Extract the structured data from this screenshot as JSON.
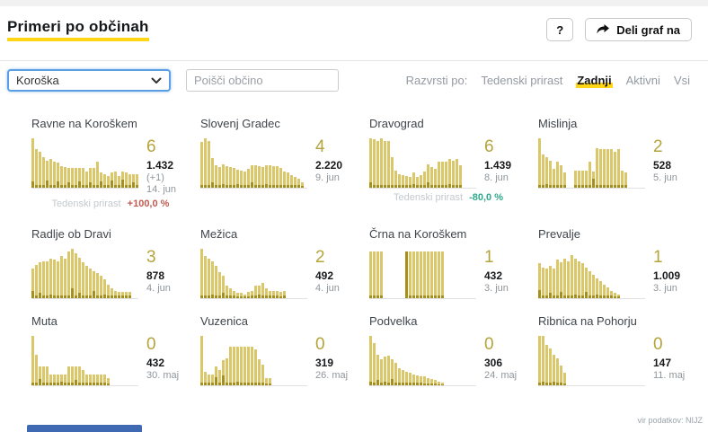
{
  "header": {
    "title": "Primeri po občinah",
    "help_label": "?",
    "share_label": "Deli graf na"
  },
  "filters": {
    "region_value": "Koroška",
    "search_placeholder": "Poišči občino",
    "sort_label": "Razvrsti po:",
    "sort_options": [
      {
        "label": "Tedenski prirast",
        "active": false
      },
      {
        "label": "Zadnji",
        "active": true
      },
      {
        "label": "Aktivni",
        "active": false
      },
      {
        "label": "Vsi",
        "active": false
      }
    ]
  },
  "colors": {
    "accent_yellow": "#ffd615",
    "bar": "#d9c76a",
    "bar_dark": "#a5901c",
    "big_number": "#b5a33b",
    "red": "#bf5b51",
    "green": "#2fa78c",
    "footer_bar_blue": "#3f69b3"
  },
  "cards": [
    {
      "name": "Ravne na Koroškem",
      "last": "6",
      "total": "1.432",
      "delta": "(+1)",
      "date": "14. jun",
      "footer_label": "Tedenski prirast",
      "footer_value": "+100,0 %",
      "footer_color": "red",
      "h": [
        1,
        0.78,
        0.72,
        0.62,
        0.55,
        0.58,
        0.52,
        0.5,
        0.44,
        0.42,
        0.4,
        0.4,
        0.4,
        0.4,
        0.4,
        0.33,
        0.4,
        0.4,
        0.52,
        0.3,
        0.28,
        0.24,
        0.3,
        0.33,
        0.24,
        0.33,
        0.3,
        0.28,
        0.28,
        0.28
      ],
      "d": [
        0.12,
        0.05,
        0.05,
        0.05,
        0.14,
        0.05,
        0.05,
        0.12,
        0.05,
        0.05,
        0.1,
        0.05,
        0.05,
        0.12,
        0.05,
        0.05,
        0.1,
        0.05,
        0.05,
        0.12,
        0.05,
        0.05,
        0.14,
        0.05,
        0.05,
        0.16,
        0.05,
        0.05,
        0.1,
        0.05
      ]
    },
    {
      "name": "Slovenj Gradec",
      "last": "4",
      "total": "2.220",
      "delta": "",
      "date": "9. jun",
      "footer_label": "",
      "footer_value": "",
      "footer_color": "",
      "h": [
        0.92,
        1,
        0.95,
        0.6,
        0.45,
        0.42,
        0.47,
        0.44,
        0.42,
        0.4,
        0.36,
        0.34,
        0.32,
        0.38,
        0.46,
        0.46,
        0.44,
        0.42,
        0.46,
        0.46,
        0.44,
        0.44,
        0.4,
        0.32,
        0.3,
        0.26,
        0.22,
        0.18,
        0.1
      ],
      "d": [
        0.05,
        0.05,
        0.05,
        0.1,
        0.05,
        0.05,
        0.08,
        0.05,
        0.05,
        0.05,
        0.08,
        0.05,
        0.05,
        0.05,
        0.1,
        0.05,
        0.05,
        0.05,
        0.08,
        0.05,
        0.05,
        0.05,
        0.05,
        0.05,
        0.05,
        0.05,
        0.05,
        0.05,
        0.04
      ]
    },
    {
      "name": "Dravograd",
      "last": "6",
      "total": "1.439",
      "delta": "",
      "date": "8. jun",
      "footer_label": "Tedenski prirast",
      "footer_value": "-80,0 %",
      "footer_color": "green",
      "h": [
        1,
        0.98,
        0.95,
        1,
        0.95,
        0.95,
        0.62,
        0.35,
        0.28,
        0.25,
        0.24,
        0.22,
        0.3,
        0.22,
        0.25,
        0.32,
        0.48,
        0.42,
        0.38,
        0.52,
        0.52,
        0.52,
        0.58,
        0.55,
        0.58,
        0.45
      ],
      "d": [
        0.1,
        0.05,
        0.05,
        0.05,
        0.05,
        0.05,
        0.05,
        0.05,
        0.05,
        0.05,
        0.05,
        0.05,
        0.08,
        0.05,
        0.05,
        0.05,
        0.1,
        0.05,
        0.05,
        0.05,
        0.05,
        0.05,
        0.08,
        0.05,
        0.05,
        0.05
      ]
    },
    {
      "name": "Mislinja",
      "last": "2",
      "total": "528",
      "delta": "",
      "date": "5. jun",
      "footer_label": "",
      "footer_value": "",
      "footer_color": "",
      "h": [
        1,
        0.68,
        0.62,
        0.55,
        0.38,
        0.52,
        0.45,
        0.3,
        0,
        0,
        0.35,
        0.35,
        0.35,
        0.35,
        0.52,
        0.32,
        0.8,
        0.78,
        0.78,
        0.78,
        0.78,
        0.72,
        0.78,
        0.35,
        0.3
      ],
      "d": [
        0.05,
        0.05,
        0.08,
        0.05,
        0.05,
        0.05,
        0.05,
        0.05,
        0,
        0,
        0.05,
        0.05,
        0.05,
        0.05,
        0.05,
        0.18,
        0.05,
        0.05,
        0.05,
        0.05,
        0.05,
        0.05,
        0.05,
        0.05,
        0.05
      ]
    },
    {
      "name": "Radlje ob Dravi",
      "last": "3",
      "total": "878",
      "delta": "",
      "date": "4. jun",
      "footer_label": "",
      "footer_value": "",
      "footer_color": "",
      "h": [
        0.6,
        0.68,
        0.72,
        0.75,
        0.75,
        0.8,
        0.78,
        0.75,
        0.85,
        0.8,
        0.95,
        1,
        0.9,
        0.82,
        0.72,
        0.65,
        0.6,
        0.55,
        0.5,
        0.45,
        0.38,
        0.28,
        0.2,
        0.15,
        0.13,
        0.13,
        0.13,
        0.13
      ],
      "d": [
        0.14,
        0.05,
        0.1,
        0.05,
        0.05,
        0.08,
        0.05,
        0.05,
        0.05,
        0.05,
        0.05,
        0.2,
        0.05,
        0.1,
        0.05,
        0.05,
        0.05,
        0.14,
        0.05,
        0.05,
        0.08,
        0.05,
        0.05,
        0.05,
        0.05,
        0.05,
        0.05,
        0.05
      ]
    },
    {
      "name": "Mežica",
      "last": "2",
      "total": "492",
      "delta": "",
      "date": "4. jun",
      "footer_label": "",
      "footer_value": "",
      "footer_color": "",
      "h": [
        1,
        0.85,
        0.8,
        0.75,
        0.65,
        0.52,
        0.45,
        0.25,
        0.2,
        0.15,
        0.1,
        0.1,
        0.08,
        0.12,
        0.15,
        0.25,
        0.25,
        0.3,
        0.2,
        0.15,
        0.15,
        0.15,
        0.12,
        0.15
      ],
      "d": [
        0.05,
        0.05,
        0.05,
        0.08,
        0.05,
        0.05,
        0.1,
        0.05,
        0.05,
        0.05,
        0.03,
        0.03,
        0.03,
        0.04,
        0.05,
        0.05,
        0.08,
        0.05,
        0.05,
        0.05,
        0.05,
        0.06,
        0.04,
        0.05
      ]
    },
    {
      "name": "Črna na Koroškem",
      "last": "1",
      "total": "432",
      "delta": "",
      "date": "3. jun",
      "footer_label": "",
      "footer_value": "",
      "footer_color": "",
      "h": [
        0.95,
        0.95,
        0.95,
        0.95,
        0,
        0,
        0,
        0,
        0,
        0,
        0.95,
        0.95,
        0.95,
        0.95,
        0.95,
        0.95,
        0.95,
        0.95,
        0.95,
        0.95,
        0.95
      ],
      "d": [
        0.05,
        0.05,
        0.05,
        0.05,
        0,
        0,
        0,
        0,
        0,
        0,
        0.95,
        0.05,
        0.05,
        0.05,
        0.05,
        0.05,
        0.05,
        0.05,
        0.05,
        0.05,
        0.05
      ]
    },
    {
      "name": "Prevalje",
      "last": "1",
      "total": "1.009",
      "delta": "",
      "date": "3. jun",
      "footer_label": "",
      "footer_value": "",
      "footer_color": "",
      "h": [
        0.7,
        0.62,
        0.6,
        0.65,
        0.6,
        0.78,
        0.72,
        0.8,
        0.75,
        0.88,
        0.8,
        0.75,
        0.7,
        0.62,
        0.55,
        0.48,
        0.4,
        0.35,
        0.28,
        0.22,
        0.15,
        0.1,
        0.08
      ],
      "d": [
        0.16,
        0.05,
        0.05,
        0.1,
        0.05,
        0.05,
        0.12,
        0.05,
        0.05,
        0.05,
        0.08,
        0.05,
        0.05,
        0.12,
        0.05,
        0.05,
        0.08,
        0.05,
        0.05,
        0.05,
        0.05,
        0.04,
        0.03
      ]
    },
    {
      "name": "Muta",
      "last": "0",
      "total": "432",
      "delta": "",
      "date": "30. maj",
      "footer_label": "",
      "footer_value": "",
      "footer_color": "",
      "h": [
        1,
        0.62,
        0.38,
        0.38,
        0.38,
        0.22,
        0.22,
        0.22,
        0.22,
        0.22,
        0.38,
        0.38,
        0.38,
        0.38,
        0.3,
        0.22,
        0.22,
        0.22,
        0.22,
        0.22,
        0.22,
        0.15
      ],
      "d": [
        0.05,
        0.05,
        0.12,
        0.05,
        0.05,
        0.06,
        0.05,
        0.05,
        0.08,
        0.05,
        0.05,
        0.05,
        0.1,
        0.05,
        0.05,
        0.05,
        0.05,
        0.06,
        0.05,
        0.05,
        0.05,
        0.04
      ]
    },
    {
      "name": "Vuzenica",
      "last": "0",
      "total": "319",
      "delta": "",
      "date": "26. maj",
      "footer_label": "",
      "footer_value": "",
      "footer_color": "",
      "h": [
        1,
        0.28,
        0.22,
        0.22,
        0.38,
        0.3,
        0.5,
        0.55,
        0.78,
        0.78,
        0.78,
        0.78,
        0.78,
        0.78,
        0.78,
        0.72,
        0.52,
        0.42,
        0.15,
        0.15
      ],
      "d": [
        0.05,
        0.05,
        0.05,
        0.06,
        0.16,
        0.05,
        0.2,
        0.05,
        0.05,
        0.05,
        0.08,
        0.05,
        0.05,
        0.05,
        0.05,
        0.05,
        0.05,
        0.05,
        0.04,
        0.04
      ]
    },
    {
      "name": "Podvelka",
      "last": "0",
      "total": "306",
      "delta": "",
      "date": "24. maj",
      "footer_label": "",
      "footer_value": "",
      "footer_color": "",
      "h": [
        1,
        0.85,
        0.62,
        0.52,
        0.58,
        0.6,
        0.52,
        0.45,
        0.35,
        0.3,
        0.28,
        0.25,
        0.22,
        0.2,
        0.18,
        0.18,
        0.15,
        0.12,
        0.1,
        0.08,
        0.05
      ],
      "d": [
        0.08,
        0.05,
        0.1,
        0.05,
        0.08,
        0.05,
        0.12,
        0.05,
        0.06,
        0.05,
        0.05,
        0.06,
        0.05,
        0.05,
        0.05,
        0.04,
        0.04,
        0.03,
        0.03,
        0.02,
        0.02
      ]
    },
    {
      "name": "Ribnica na Pohorju",
      "last": "0",
      "total": "147",
      "delta": "",
      "date": "11. maj",
      "footer_label": "",
      "footer_value": "",
      "footer_color": "",
      "h": [
        1,
        1,
        0.82,
        0.75,
        0.62,
        0.55,
        0.4,
        0.25,
        0,
        0,
        0,
        0,
        0,
        0,
        0,
        0,
        0,
        0,
        0,
        0
      ],
      "d": [
        0.05,
        0.08,
        0.05,
        0.05,
        0.08,
        0.05,
        0.05,
        0.04,
        0,
        0,
        0,
        0,
        0,
        0,
        0,
        0,
        0,
        0,
        0,
        0
      ]
    }
  ],
  "footer": {
    "source": "vir podatkov: NIJZ"
  }
}
